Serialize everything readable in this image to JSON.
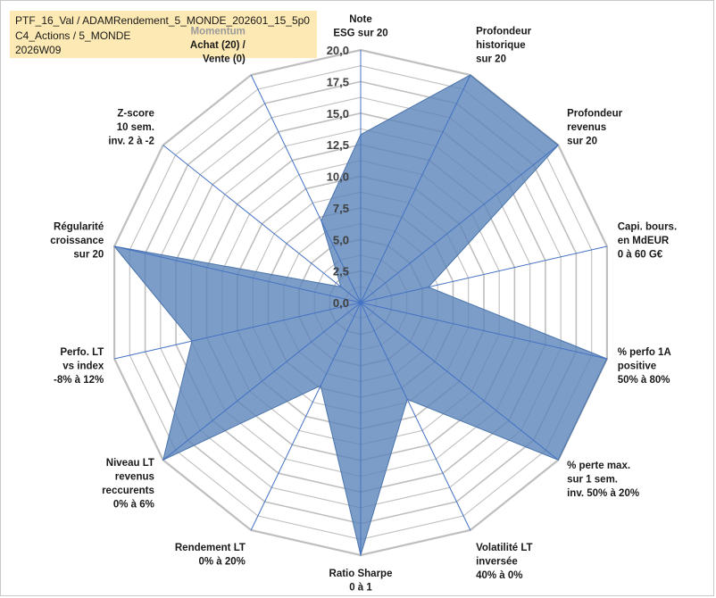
{
  "title_lines": [
    "PTF_16_Val / ADAMRendement_5_MONDE_202601_15_5p0",
    "C4_Actions / 5_MONDE",
    "2026W09"
  ],
  "chart_data": {
    "type": "radar",
    "rlim": [
      0,
      20
    ],
    "ticks": [
      "0,0",
      "2,5",
      "5,0",
      "7,5",
      "10,0",
      "12,5",
      "15,0",
      "17,5",
      "20,0"
    ],
    "grid": true,
    "colors": {
      "fill": "#5b84b9",
      "fill_opacity": 0.8,
      "grid": "#bfbfbf",
      "spoke": "#4472c4"
    },
    "axes": [
      {
        "label": [
          "Note",
          "ESG sur 20"
        ],
        "value": 13.3
      },
      {
        "label": [
          "Profondeur",
          "historique",
          "sur 20"
        ],
        "value": 20
      },
      {
        "label": [
          "Profondeur",
          "revenus",
          "sur 20"
        ],
        "value": 20
      },
      {
        "label": [
          "Capi. bours.",
          "en MdEUR",
          "0 à 60 G€"
        ],
        "value": 5.5
      },
      {
        "label": [
          "% perfo 1A",
          "positive",
          "50% à 80%"
        ],
        "value": 20
      },
      {
        "label": [
          "% perte max.",
          "sur 1 sem.",
          "inv. 50% à 20%"
        ],
        "value": 20
      },
      {
        "label": [
          "Volatilité LT",
          "inversée",
          "40% à 0%"
        ],
        "value": 8.5
      },
      {
        "label": [
          "Ratio Sharpe",
          "0 à 1"
        ],
        "value": 20
      },
      {
        "label": [
          "Rendement LT",
          "0% à 20%"
        ],
        "value": 7.3
      },
      {
        "label": [
          "Niveau LT",
          "revenus",
          "reccurents",
          "0% à 6%"
        ],
        "value": 20
      },
      {
        "label": [
          "Perfo. LT",
          "vs index",
          "-8% à 12%"
        ],
        "value": 13.7
      },
      {
        "label": [
          "Régularité",
          "croissance",
          "sur 20"
        ],
        "value": 20
      },
      {
        "label": [
          "Z-score",
          "10 sem.",
          "inv. 2 à -2"
        ],
        "value": 2.0
      },
      {
        "label": [
          "Momentum",
          "Achat (20) /",
          "Vente (0)"
        ],
        "value": 7.2,
        "first_line_grey": true
      }
    ]
  }
}
